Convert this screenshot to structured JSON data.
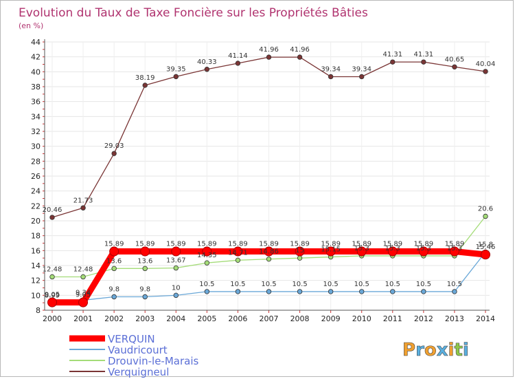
{
  "chart_data": {
    "type": "line",
    "title": "Evolution du Taux de Taxe Foncière sur les Propriétés Bâties",
    "subtitle": "(en %)",
    "categories": [
      "2000",
      "2001",
      "2002",
      "2003",
      "2004",
      "2005",
      "2006",
      "2007",
      "2008",
      "2009",
      "2010",
      "2011",
      "2012",
      "2013",
      "2014"
    ],
    "ylim": [
      8,
      44
    ],
    "yticks": [
      8,
      10,
      12,
      14,
      16,
      18,
      20,
      22,
      24,
      26,
      28,
      30,
      32,
      34,
      36,
      38,
      40,
      42,
      44
    ],
    "series": [
      {
        "name": "VERQUIN",
        "color": "#ff0000",
        "highlight": true,
        "values": [
          9.05,
          9.05,
          15.89,
          15.89,
          15.89,
          15.89,
          15.89,
          15.89,
          15.89,
          15.89,
          15.89,
          15.89,
          15.89,
          15.89,
          15.46
        ],
        "labels": [
          "9.05",
          "9.05",
          "15.89",
          "15.89",
          "15.89",
          "15.89",
          "15.89",
          "15.89",
          "15.89",
          "15.89",
          "15.89",
          "15.89",
          "15.89",
          "15.89",
          "15.46"
        ]
      },
      {
        "name": "Vaudricourt",
        "color": "#6aa8d8",
        "values": [
          8.99,
          9.34,
          9.8,
          9.8,
          10,
          10.5,
          10.5,
          10.5,
          10.5,
          10.5,
          10.5,
          10.5,
          10.5,
          10.5,
          15.8
        ],
        "labels": [
          "8.99",
          "9.34",
          "9.8",
          "9.8",
          "10",
          "10.5",
          "10.5",
          "10.5",
          "10.5",
          "10.5",
          "10.5",
          "10.5",
          "10.5",
          "10.5",
          "15.8"
        ]
      },
      {
        "name": "Drouvin-le-Marais",
        "color": "#a4dc78",
        "values": [
          12.48,
          12.48,
          13.6,
          13.6,
          13.67,
          14.35,
          14.71,
          14.86,
          15,
          15.15,
          15.3,
          15.3,
          15.3,
          15.3,
          20.6
        ],
        "labels": [
          "12.48",
          "12.48",
          "13.6",
          "13.6",
          "13.67",
          "14.35",
          "14.71",
          "14.86",
          "15",
          "15.15",
          "15.3",
          "15.3",
          "15.3",
          "15.3",
          "20.6"
        ]
      },
      {
        "name": "Verquigneul",
        "color": "#7a3535",
        "values": [
          20.46,
          21.73,
          29.03,
          38.19,
          39.35,
          40.33,
          41.14,
          41.96,
          41.96,
          39.34,
          39.34,
          41.31,
          41.31,
          40.65,
          40.04
        ],
        "labels": [
          "20.46",
          "21.73",
          "29.03",
          "38.19",
          "39.35",
          "40.33",
          "41.14",
          "41.96",
          "41.96",
          "39.34",
          "39.34",
          "41.31",
          "41.31",
          "40.65",
          "40.04"
        ]
      }
    ],
    "legend_position": "bottom-left"
  },
  "brand": {
    "letters": [
      "P",
      "r",
      "o",
      "x",
      "i",
      "t",
      "i"
    ],
    "colors": [
      "#f0a030",
      "#5ab0e0",
      "#f0a030",
      "#5ab0e0",
      "#f0a030",
      "#8fc84a",
      "#5ab0e0"
    ]
  }
}
